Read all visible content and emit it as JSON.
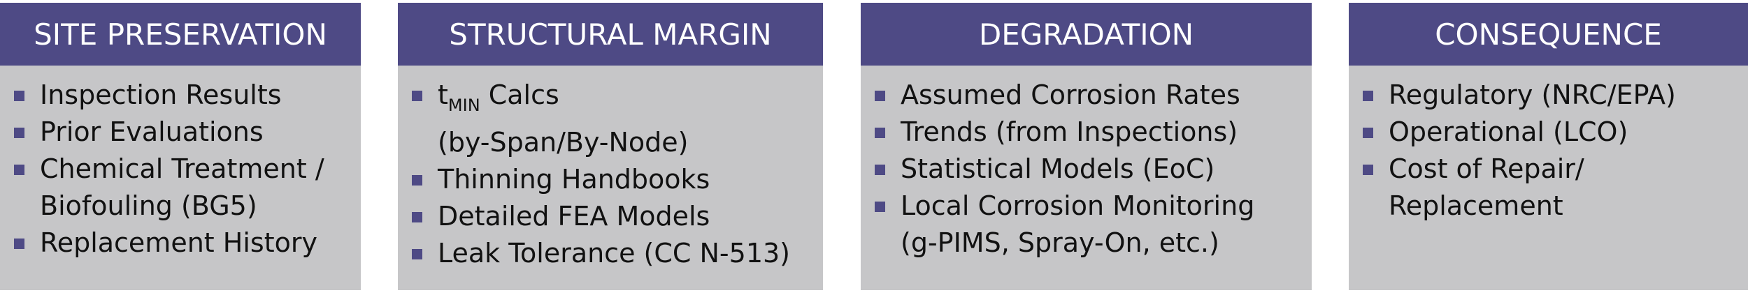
{
  "colors": {
    "header_bg": "#4e4a85",
    "panel_bg": "#c6c6c8",
    "bullet": "#4e4a85",
    "text": "#111111"
  },
  "panels": [
    {
      "title": "SITE PRESERVATION",
      "items": [
        {
          "lines": [
            "Inspection Results"
          ]
        },
        {
          "lines": [
            "Prior Evaluations"
          ]
        },
        {
          "lines": [
            "Chemical Treatment /",
            "Biofouling (BG5)"
          ]
        },
        {
          "lines": [
            "Replacement History"
          ]
        }
      ]
    },
    {
      "title": "STRUCTURAL MARGIN",
      "items": [
        {
          "t_base": "t",
          "t_sub": "MIN",
          "t_rest": " Calcs",
          "line2": "(by-Span/By-Node)"
        },
        {
          "lines": [
            "Thinning Handbooks"
          ]
        },
        {
          "lines": [
            "Detailed FEA Models"
          ]
        },
        {
          "lines": [
            "Leak Tolerance (CC N-513)"
          ]
        }
      ]
    },
    {
      "title": "DEGRADATION",
      "items": [
        {
          "lines": [
            "Assumed Corrosion Rates"
          ]
        },
        {
          "lines": [
            "Trends (from Inspections)"
          ]
        },
        {
          "lines": [
            "Statistical Models (EoC)"
          ]
        },
        {
          "lines": [
            "Local Corrosion Monitoring",
            "(g-PIMS, Spray-On, etc.)"
          ]
        }
      ]
    },
    {
      "title": "CONSEQUENCE",
      "items": [
        {
          "lines": [
            "Regulatory (NRC/EPA)"
          ]
        },
        {
          "lines": [
            "Operational (LCO)"
          ]
        },
        {
          "lines": [
            "Cost of Repair/",
            "Replacement"
          ]
        }
      ]
    }
  ]
}
